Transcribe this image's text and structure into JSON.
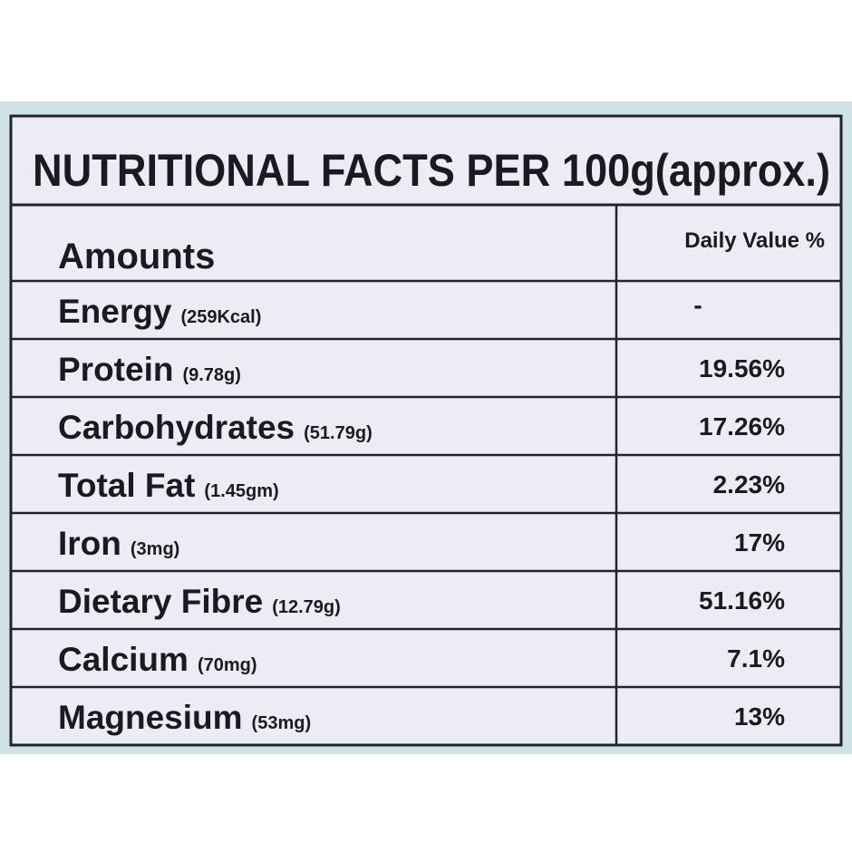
{
  "title": "NUTRITIONAL FACTS PER 100g(approx.)",
  "header": {
    "amounts": "Amounts",
    "daily_value": "Daily Value %"
  },
  "rows": [
    {
      "nutrient": "Energy",
      "amount": "(259Kcal)",
      "daily_value": "-"
    },
    {
      "nutrient": "Protein",
      "amount": "(9.78g)",
      "daily_value": "19.56%"
    },
    {
      "nutrient": "Carbohydrates",
      "amount": "(51.79g)",
      "daily_value": "17.26%"
    },
    {
      "nutrient": "Total Fat",
      "amount": "(1.45gm)",
      "daily_value": "2.23%"
    },
    {
      "nutrient": "Iron",
      "amount": "(3mg)",
      "daily_value": "17%"
    },
    {
      "nutrient": "Dietary Fibre",
      "amount": "(12.79g)",
      "daily_value": "51.16%"
    },
    {
      "nutrient": "Calcium",
      "amount": "(70mg)",
      "daily_value": "7.1%"
    },
    {
      "nutrient": "Magnesium",
      "amount": "(53mg)",
      "daily_value": "13%"
    }
  ]
}
